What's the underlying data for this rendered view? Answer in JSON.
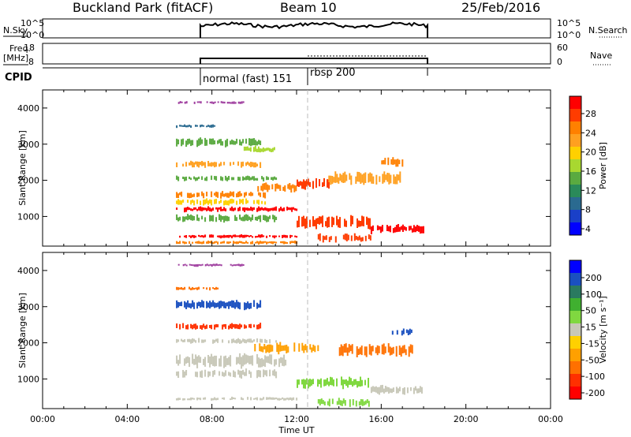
{
  "header": {
    "station": "Buckland Park (fitACF)",
    "beam": "Beam 10",
    "date": "25/Feb/2016"
  },
  "status_panels": {
    "nsky_label": "N.Sky",
    "nsky_ticks": [
      "10^5",
      "10^0"
    ],
    "freq_label_1": "Freq.",
    "freq_label_2": "[MHz]",
    "freq_ticks": [
      "18",
      "8"
    ],
    "nsearch_label": "N.Search",
    "nsearch_ticks": [
      "10^5",
      "10^0"
    ],
    "nave_label": "Nave",
    "nave_ticks": [
      "60",
      "0"
    ],
    "cpid_label": "CPID",
    "cpid_segments": [
      "normal (fast) 151",
      "rbsp 200"
    ]
  },
  "colorbars": {
    "power": {
      "label": "Power [dB]",
      "ticks": [
        "28",
        "24",
        "20",
        "16",
        "12",
        "8",
        "4"
      ],
      "colors": [
        "#ff0000",
        "#ff3c00",
        "#ff8000",
        "#ffa020",
        "#ffd000",
        "#a8d830",
        "#5aaa40",
        "#2a8a5a",
        "#2a6a90",
        "#1a40c8",
        "#0000ff"
      ]
    },
    "velocity": {
      "label": "Velocity [m s⁻¹]",
      "ticks": [
        "200",
        "100",
        "50",
        "15",
        "-15",
        "-50",
        "-100",
        "-200"
      ],
      "colors": [
        "#0000ff",
        "#1a50c0",
        "#2a7a60",
        "#40b030",
        "#80d840",
        "#c8c8b8",
        "#ffd000",
        "#ffa000",
        "#ff7000",
        "#ff3000",
        "#ff0000"
      ]
    }
  },
  "chart_data": [
    {
      "type": "heatmap",
      "panel": "power",
      "ylabel": "Slant Range [km]",
      "ylim": [
        180,
        4500
      ],
      "yticks": [
        1000,
        2000,
        3000,
        4000
      ],
      "xlim": [
        0,
        24
      ],
      "features": [
        {
          "t0": 6.4,
          "t1": 9.5,
          "r": 4150,
          "h": 20,
          "c": "#a040a0"
        },
        {
          "t0": 6.3,
          "t1": 8.3,
          "r": 3500,
          "h": 80,
          "c": "#2a6a90"
        },
        {
          "t0": 6.3,
          "t1": 10.3,
          "r": 3050,
          "h": 200,
          "c": "#5aaa40"
        },
        {
          "t0": 9.5,
          "t1": 11.0,
          "r": 2850,
          "h": 150,
          "c": "#a8d830"
        },
        {
          "t0": 6.3,
          "t1": 10.3,
          "r": 2450,
          "h": 150,
          "c": "#ffa020"
        },
        {
          "t0": 6.3,
          "t1": 11.0,
          "r": 2050,
          "h": 120,
          "c": "#5aaa40"
        },
        {
          "t0": 10.0,
          "t1": 12.0,
          "r": 1800,
          "h": 200,
          "c": "#ff8000"
        },
        {
          "t0": 12.0,
          "t1": 13.5,
          "r": 1900,
          "h": 250,
          "c": "#ff3c00"
        },
        {
          "t0": 6.3,
          "t1": 10.5,
          "r": 1600,
          "h": 150,
          "c": "#ff8000"
        },
        {
          "t0": 6.3,
          "t1": 10.5,
          "r": 1400,
          "h": 150,
          "c": "#ffd000"
        },
        {
          "t0": 6.3,
          "t1": 12.0,
          "r": 1200,
          "h": 120,
          "c": "#ff0000"
        },
        {
          "t0": 6.3,
          "t1": 11.0,
          "r": 950,
          "h": 180,
          "c": "#5aaa40"
        },
        {
          "t0": 12.0,
          "t1": 15.5,
          "r": 850,
          "h": 300,
          "c": "#ff3c00"
        },
        {
          "t0": 15.5,
          "t1": 18.0,
          "r": 650,
          "h": 200,
          "c": "#ff0000"
        },
        {
          "t0": 13.0,
          "t1": 15.5,
          "r": 400,
          "h": 200,
          "c": "#ff3c00"
        },
        {
          "t0": 6.3,
          "t1": 12.0,
          "r": 450,
          "h": 80,
          "c": "#ff0000"
        },
        {
          "t0": 6.3,
          "t1": 12.0,
          "r": 280,
          "h": 80,
          "c": "#ff8000"
        },
        {
          "t0": 13.5,
          "t1": 17.0,
          "r": 2050,
          "h": 300,
          "c": "#ffa020"
        },
        {
          "t0": 16.0,
          "t1": 17.0,
          "r": 2500,
          "h": 200,
          "c": "#ff8000"
        }
      ]
    },
    {
      "type": "heatmap",
      "panel": "velocity",
      "xlabel": "Time UT",
      "ylabel": "Slant Range [km]",
      "ylim": [
        180,
        4500
      ],
      "yticks": [
        1000,
        2000,
        3000,
        4000
      ],
      "xlim": [
        0,
        24
      ],
      "xticks": [
        "00:00",
        "04:00",
        "08:00",
        "12:00",
        "16:00",
        "20:00",
        "00:00"
      ],
      "features": [
        {
          "t0": 6.4,
          "t1": 9.5,
          "r": 4150,
          "h": 20,
          "c": "#a040a0"
        },
        {
          "t0": 6.3,
          "t1": 8.3,
          "r": 3500,
          "h": 80,
          "c": "#ff7000"
        },
        {
          "t0": 6.3,
          "t1": 10.3,
          "r": 3050,
          "h": 200,
          "c": "#1a50c0"
        },
        {
          "t0": 6.3,
          "t1": 10.3,
          "r": 2450,
          "h": 150,
          "c": "#ff3000"
        },
        {
          "t0": 6.3,
          "t1": 11.0,
          "r": 2050,
          "h": 120,
          "c": "#c8c8b8"
        },
        {
          "t0": 10.0,
          "t1": 13.0,
          "r": 1850,
          "h": 250,
          "c": "#ffa000"
        },
        {
          "t0": 6.3,
          "t1": 11.5,
          "r": 1500,
          "h": 300,
          "c": "#c8c8b8"
        },
        {
          "t0": 6.3,
          "t1": 11.0,
          "r": 1150,
          "h": 200,
          "c": "#c8c8b8"
        },
        {
          "t0": 12.0,
          "t1": 15.5,
          "r": 900,
          "h": 250,
          "c": "#80d840"
        },
        {
          "t0": 15.5,
          "t1": 18.0,
          "r": 700,
          "h": 200,
          "c": "#c8c8b8"
        },
        {
          "t0": 6.3,
          "t1": 12.0,
          "r": 450,
          "h": 80,
          "c": "#c8c8b8"
        },
        {
          "t0": 13.0,
          "t1": 15.5,
          "r": 350,
          "h": 200,
          "c": "#80d840"
        },
        {
          "t0": 14.0,
          "t1": 17.5,
          "r": 1800,
          "h": 300,
          "c": "#ff7000"
        },
        {
          "t0": 16.5,
          "t1": 17.5,
          "r": 2300,
          "h": 150,
          "c": "#1a50c0"
        }
      ]
    }
  ]
}
